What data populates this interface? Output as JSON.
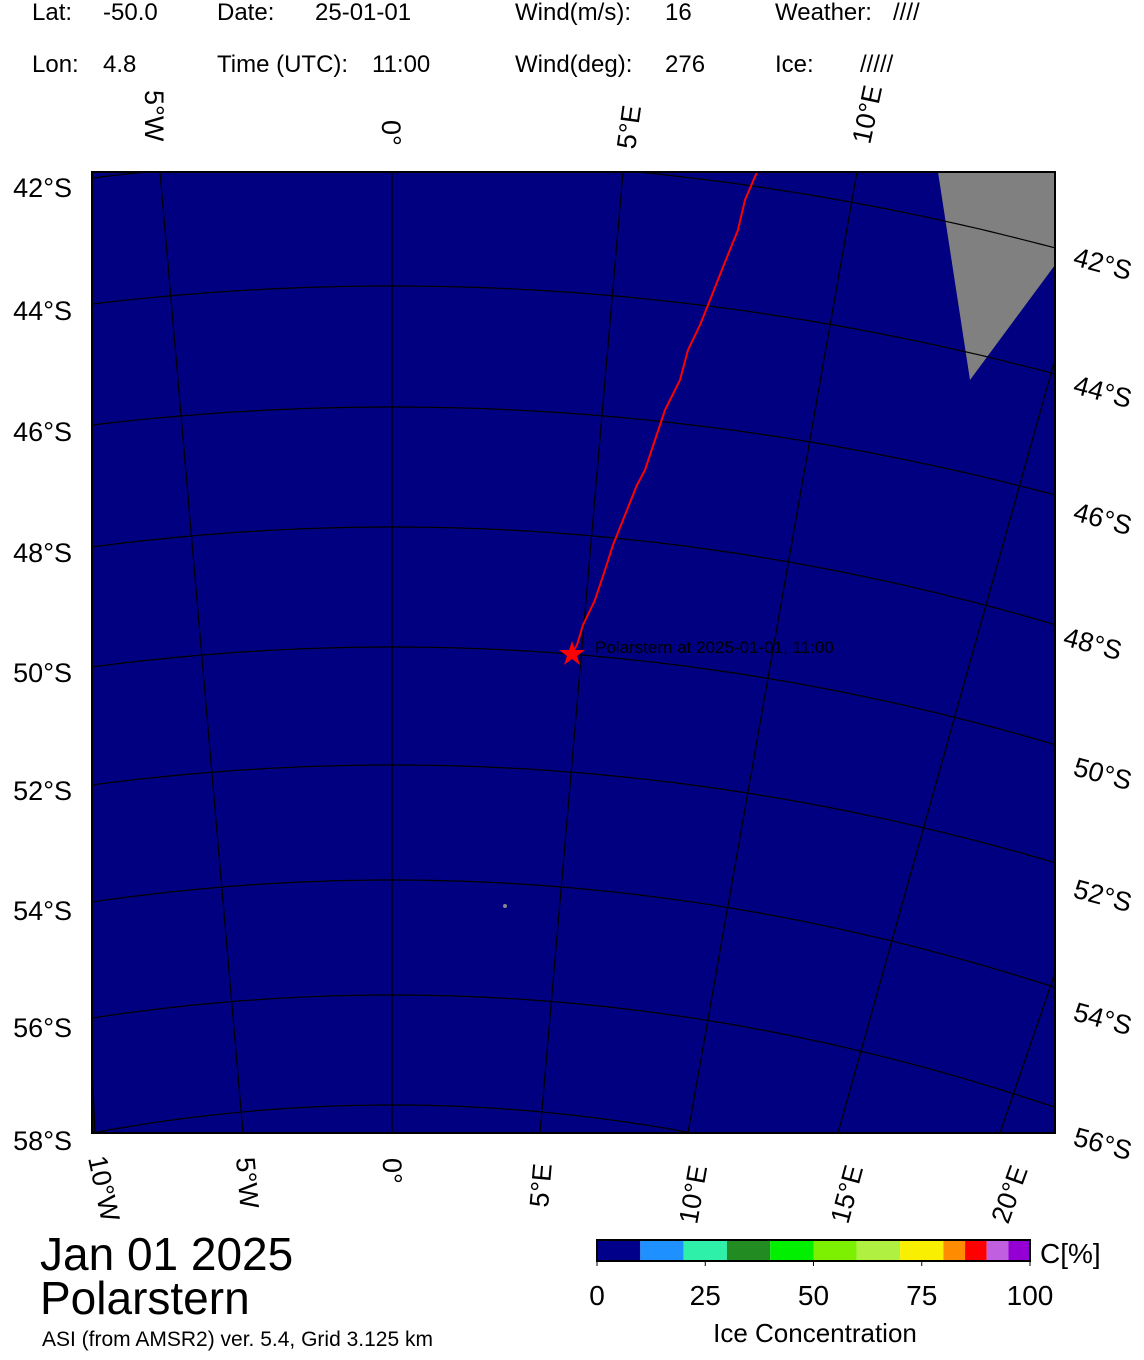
{
  "header": {
    "lat_label": "Lat:",
    "lat": "-50.0",
    "date_label": "Date:",
    "date": "25-01-01",
    "wind_speed_label": "Wind(m/s):",
    "wind_speed": "16",
    "weather_label": "Weather:",
    "weather": "////",
    "lon_label": "Lon:",
    "lon": "4.8",
    "time_label": "Time (UTC):",
    "time": "11:00",
    "wind_dir_label": "Wind(deg):",
    "wind_dir": "276",
    "ice_label": "Ice:",
    "ice": "/////"
  },
  "map": {
    "top_lon_labels": [
      "5°W",
      "0°",
      "5°E",
      "10°E"
    ],
    "left_lat_labels": [
      "42°S",
      "44°S",
      "46°S",
      "48°S",
      "50°S",
      "52°S",
      "54°S",
      "56°S",
      "58°S"
    ],
    "right_lat_labels": [
      "42°S",
      "44°S",
      "46°S",
      "48°S",
      "50°S",
      "52°S",
      "54°S",
      "56°S"
    ],
    "bottom_lon_labels": [
      "10°W",
      "5°W",
      "0°",
      "5°E",
      "10°E",
      "15°E",
      "20°E"
    ],
    "annotation": "Polarstern at 2025-01-01, 11:00"
  },
  "footer": {
    "date": "Jan 01 2025",
    "ship": "Polarstern",
    "source": "ASI (from AMSR2) ver. 5.4,  Grid 3.125 km"
  },
  "colorbar": {
    "range": [
      0,
      100
    ],
    "ticks": [
      0,
      25,
      50,
      75,
      100
    ],
    "bounds": [
      0,
      10,
      20,
      30,
      40,
      50,
      60,
      70,
      80,
      85,
      90,
      95,
      100
    ],
    "colors": [
      "#00008b",
      "#1e90ff",
      "#2ef0a8",
      "#228b22",
      "#00f000",
      "#7cf000",
      "#b0f040",
      "#f8f000",
      "#ff8c00",
      "#ff0000",
      "#c060e0",
      "#9400d3"
    ],
    "unit": "C[%]",
    "label": "Ice Concentration"
  }
}
